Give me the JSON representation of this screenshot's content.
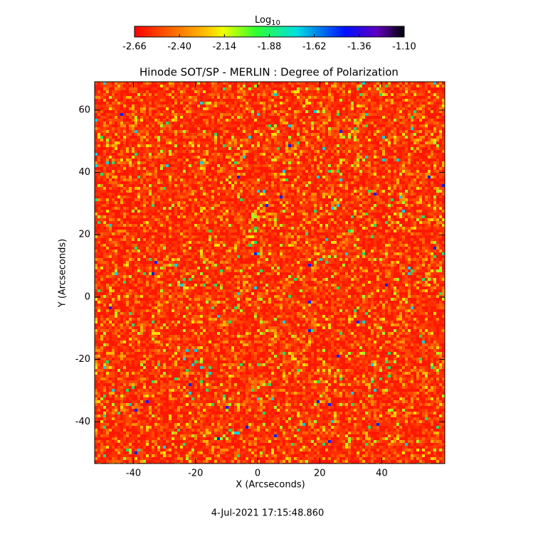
{
  "chart_data": {
    "type": "image",
    "title": "Hinode SOT/SP - MERLIN : Degree of Polarization",
    "x_label": "X (Arcseconds)",
    "y_label": "Y (Arcseconds)",
    "xlim": [
      -52.5,
      60.3
    ],
    "ylim": [
      -53.4,
      69.1
    ],
    "xticks": [
      -40,
      -20,
      0,
      20,
      40
    ],
    "yticks": [
      -40,
      -20,
      0,
      20,
      40,
      60
    ],
    "colorbar_label": "Log",
    "colorbar_label_sub": "10",
    "clim": [
      -2.66,
      -1.1
    ],
    "cticks": [
      -2.66,
      {
        "value": -2.4,
        "label": "-2.40"
      },
      -2.14,
      -1.88,
      -1.62,
      -1.36,
      {
        "value": -1.1,
        "label": "-1.10"
      }
    ],
    "timestamp": "4-Jul-2021 17:15:48.860"
  }
}
